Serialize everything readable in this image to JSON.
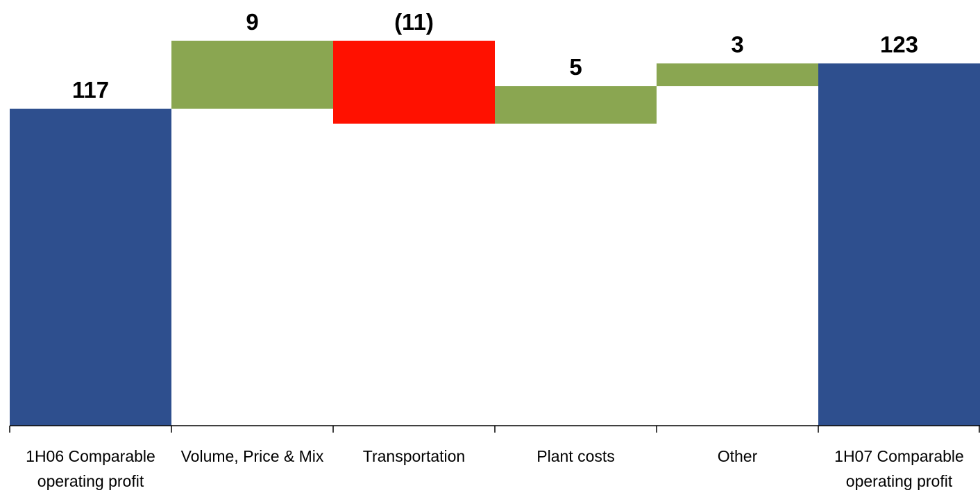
{
  "chart_data": {
    "type": "waterfall",
    "categories": [
      "1H06 Comparable operating profit",
      "Volume, Price & Mix",
      "Transportation",
      "Plant costs",
      "Other",
      "1H07 Comparable operating profit"
    ],
    "values": [
      117,
      9,
      -11,
      5,
      3,
      123
    ],
    "value_labels": [
      "117",
      "9",
      "(11)",
      "5",
      "3",
      "123"
    ],
    "colors": [
      "#2e4f8e",
      "#8aa651",
      "#ff1100",
      "#8aa651",
      "#8aa651",
      "#2e4f8e"
    ],
    "ylim": [
      75,
      128
    ]
  }
}
